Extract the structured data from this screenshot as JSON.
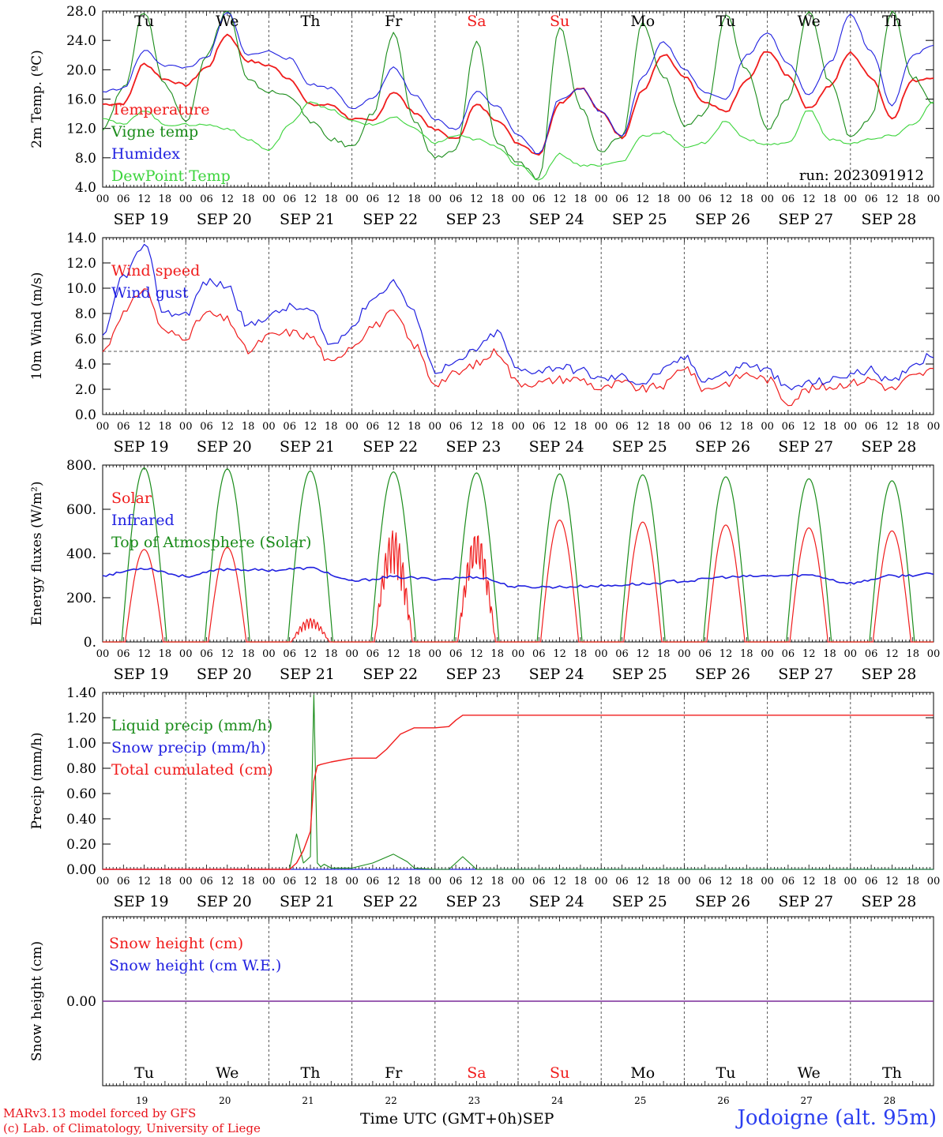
{
  "chart_data": [
    {
      "type": "line",
      "ylabel": "2m Temp. (ºC)",
      "ylim": [
        4.0,
        28.0
      ],
      "yticks": [
        "4.0",
        "8.0",
        "12.0",
        "16.0",
        "20.0",
        "24.0",
        "28.0"
      ],
      "run_label": "run: 2023091912",
      "x_hours": [
        0,
        6,
        12,
        18,
        24,
        30,
        36,
        42,
        48,
        54,
        60,
        66,
        72,
        78,
        84,
        90,
        96,
        102,
        108,
        114,
        120,
        126,
        132,
        138,
        144,
        150,
        156,
        162,
        168,
        174,
        180,
        186,
        192,
        198,
        204,
        210,
        216,
        222,
        228,
        234,
        240
      ],
      "series": [
        {
          "name": "Temperature",
          "color": "#f01c1c",
          "values": [
            15.3,
            15.4,
            20.8,
            18.7,
            17.9,
            20.3,
            24.8,
            21.2,
            20.6,
            18.8,
            15.2,
            15.2,
            13.3,
            13.0,
            17.0,
            14.2,
            11.8,
            10.5,
            15.2,
            13.2,
            10.0,
            8.5,
            15.5,
            17.6,
            14.2,
            10.8,
            17.2,
            22.1,
            19.0,
            15.4,
            14.3,
            18.5,
            22.6,
            19.2,
            14.7,
            17.8,
            22.3,
            19.0,
            13.4,
            18.5,
            19.0
          ]
        },
        {
          "name": "Vigne temp",
          "color": "#1a8c1a",
          "values": [
            12.0,
            17.5,
            27.9,
            18.0,
            13.0,
            22.0,
            28.2,
            18.5,
            17.0,
            16.5,
            13.0,
            10.5,
            9.5,
            14.0,
            24.8,
            13.0,
            8.0,
            9.0,
            23.8,
            10.0,
            7.5,
            5.0,
            25.8,
            15.0,
            9.0,
            11.0,
            26.5,
            19.0,
            12.5,
            14.0,
            27.5,
            20.0,
            12.0,
            16.0,
            28.0,
            18.5,
            11.0,
            13.5,
            28.0,
            19.0,
            15.5
          ]
        },
        {
          "name": "Humidex",
          "color": "#2020e0",
          "values": [
            17.0,
            17.5,
            22.6,
            20.6,
            20.3,
            21.6,
            27.8,
            22.0,
            22.5,
            21.5,
            18.0,
            17.5,
            14.8,
            16.0,
            20.3,
            16.5,
            13.2,
            11.8,
            17.0,
            15.0,
            11.2,
            8.5,
            16.0,
            17.5,
            14.3,
            11.0,
            19.0,
            23.8,
            20.0,
            17.0,
            16.0,
            22.0,
            25.0,
            21.0,
            16.5,
            21.0,
            27.5,
            22.5,
            15.2,
            22.0,
            23.3
          ]
        },
        {
          "name": "DewPoint Temp",
          "color": "#3cd43c",
          "values": [
            13.5,
            12.5,
            14.5,
            12.5,
            12.5,
            12.5,
            12.0,
            10.5,
            9.0,
            12.5,
            15.7,
            14.5,
            13.0,
            12.5,
            13.5,
            12.0,
            10.0,
            11.0,
            10.5,
            9.5,
            7.0,
            5.0,
            8.5,
            7.0,
            7.0,
            7.5,
            11.0,
            11.5,
            9.5,
            10.0,
            13.0,
            10.5,
            9.8,
            10.0,
            14.5,
            10.5,
            10.0,
            10.5,
            11.0,
            12.5,
            15.5
          ]
        }
      ]
    },
    {
      "type": "line",
      "ylabel": "10m Wind (m/s)",
      "ylim": [
        0.0,
        14.0
      ],
      "yticks": [
        "0.0",
        "2.0",
        "4.0",
        "6.0",
        "8.0",
        "10.0",
        "12.0",
        "14.0"
      ],
      "reference_line": 5.0,
      "x_hours": [
        0,
        6,
        12,
        18,
        24,
        30,
        36,
        42,
        48,
        54,
        60,
        66,
        72,
        78,
        84,
        90,
        96,
        102,
        108,
        114,
        120,
        126,
        132,
        138,
        144,
        150,
        156,
        162,
        168,
        174,
        180,
        186,
        192,
        198,
        204,
        210,
        216,
        222,
        228,
        234,
        240
      ],
      "series": [
        {
          "name": "Wind speed",
          "color": "#f01c1c",
          "values": [
            5.0,
            8.0,
            10.0,
            6.5,
            6.2,
            8.0,
            7.5,
            5.0,
            6.2,
            6.5,
            6.2,
            4.0,
            5.5,
            7.0,
            8.0,
            5.5,
            2.5,
            3.2,
            4.0,
            5.0,
            2.5,
            2.5,
            2.8,
            2.8,
            2.0,
            2.5,
            2.0,
            2.3,
            3.8,
            2.0,
            2.5,
            3.2,
            2.8,
            1.0,
            2.0,
            2.2,
            2.5,
            2.8,
            2.0,
            3.0,
            3.5
          ]
        },
        {
          "name": "Wind gust",
          "color": "#2020e0",
          "values": [
            6.0,
            11.0,
            13.3,
            8.0,
            8.0,
            10.5,
            10.2,
            7.0,
            7.8,
            8.5,
            8.2,
            5.5,
            7.0,
            9.2,
            10.5,
            8.0,
            3.5,
            4.0,
            5.2,
            6.5,
            3.5,
            3.5,
            3.8,
            3.5,
            2.8,
            3.0,
            2.5,
            3.5,
            4.5,
            2.8,
            3.2,
            4.0,
            3.5,
            2.0,
            2.5,
            2.7,
            3.2,
            3.5,
            2.5,
            4.0,
            4.8
          ]
        }
      ]
    },
    {
      "type": "line",
      "ylabel": "Energy fluxes (W/m²)",
      "ylim": [
        0,
        900
      ],
      "yticks": [
        "0.",
        "200.",
        "400.",
        "600.",
        "800."
      ],
      "series": [
        {
          "name": "Solar",
          "color": "#f01c1c",
          "daily_peaks": [
            470,
            480,
            120,
            570,
            560,
            620,
            610,
            595,
            580,
            565
          ]
        },
        {
          "name": "Infrared",
          "color": "#2020e0",
          "x_hours": [
            0,
            12,
            24,
            36,
            48,
            60,
            72,
            84,
            96,
            108,
            120,
            132,
            144,
            156,
            168,
            180,
            192,
            204,
            216,
            228,
            240
          ],
          "values": [
            340,
            375,
            335,
            370,
            365,
            375,
            310,
            330,
            320,
            330,
            280,
            280,
            285,
            295,
            310,
            330,
            335,
            340,
            300,
            335,
            345
          ]
        },
        {
          "name": "Top of Atmosphere (Solar)",
          "color": "#1a8c1a",
          "daily_peaks": [
            885,
            880,
            870,
            865,
            860,
            855,
            850,
            840,
            830,
            820
          ]
        }
      ]
    },
    {
      "type": "line",
      "ylabel": "Precip (mm/h)",
      "ylim": [
        0.0,
        1.4
      ],
      "yticks": [
        "0.00",
        "0.20",
        "0.40",
        "0.60",
        "0.80",
        "1.00",
        "1.20",
        "1.40"
      ],
      "series": [
        {
          "name": "Liquid precip (mm/h)",
          "color": "#1a8c1a",
          "x_hours": [
            0,
            48,
            54,
            56,
            58,
            60,
            61,
            62,
            63,
            64,
            66,
            72,
            78,
            84,
            88,
            90,
            96,
            100,
            104,
            108,
            110,
            240
          ],
          "values": [
            0,
            0,
            0,
            0.28,
            0.05,
            0.1,
            1.38,
            0.05,
            0.02,
            0.04,
            0.01,
            0.01,
            0.05,
            0.12,
            0.06,
            0.01,
            0.0,
            0.0,
            0.1,
            0.0,
            0.0,
            0.0
          ]
        },
        {
          "name": "Snow precip (mm/h)",
          "color": "#2020e0",
          "x_hours": [
            0,
            240
          ],
          "values": [
            0,
            0
          ]
        },
        {
          "name": "Total cumulated (cm)",
          "color": "#f01c1c",
          "x_hours": [
            0,
            54,
            56,
            58,
            60,
            61,
            62,
            63,
            66,
            72,
            79,
            82,
            86,
            90,
            96,
            100,
            102,
            104,
            240
          ],
          "values": [
            0,
            0,
            0.05,
            0.15,
            0.3,
            0.7,
            0.82,
            0.83,
            0.85,
            0.88,
            0.88,
            0.95,
            1.07,
            1.12,
            1.12,
            1.13,
            1.18,
            1.22,
            1.22
          ]
        }
      ]
    },
    {
      "type": "line",
      "ylabel": "Snow height (cm)",
      "ylim": [
        -1.0,
        1.0
      ],
      "yticks": [
        "0.00"
      ],
      "series": [
        {
          "name": "Snow height (cm)",
          "color": "#f01c1c",
          "values": [
            0,
            0
          ]
        },
        {
          "name": "Snow height (cm W.E.)",
          "color": "#2020e0",
          "values": [
            0,
            0
          ]
        }
      ]
    }
  ],
  "hour_ticks": [
    "00",
    "06",
    "12",
    "18"
  ],
  "end_tick": "00",
  "dates": [
    "SEP 19",
    "SEP 20",
    "SEP 21",
    "SEP 22",
    "SEP 23",
    "SEP 24",
    "SEP 25",
    "SEP 26",
    "SEP 27",
    "SEP 28"
  ],
  "weekdays": [
    "Tu",
    "We",
    "Th",
    "Fr",
    "Sa",
    "Su",
    "Mo",
    "Tu",
    "We",
    "Th"
  ],
  "weekend_indices": [
    4,
    5
  ],
  "day_numbers": [
    "19",
    "20",
    "21",
    "22",
    "23",
    "24",
    "25",
    "26",
    "27",
    "28"
  ],
  "footer": {
    "model": "MARv3.13 model forced by GFS",
    "copyright": "(c) Lab. of Climatology, University of Liege",
    "x_axis_title": "Time UTC (GMT+0h)",
    "month": "SEP",
    "site": "Jodoigne (alt. 95m)"
  },
  "colors": {
    "weekday": "#000000",
    "weekend": "#f01c1c"
  }
}
